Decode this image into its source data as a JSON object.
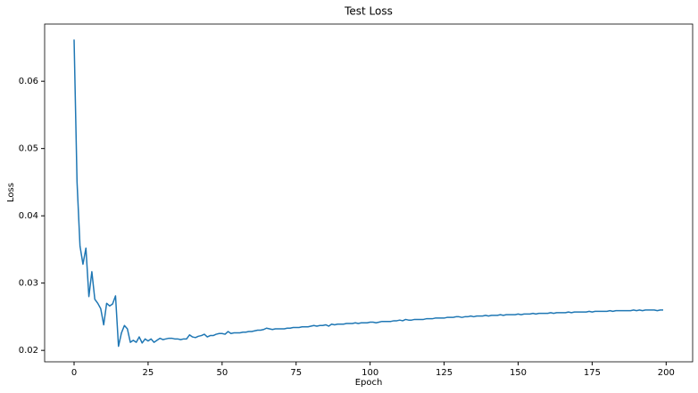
{
  "chart_data": {
    "type": "line",
    "title": "Test Loss",
    "xlabel": "Epoch",
    "ylabel": "Loss",
    "x": [
      0,
      1,
      2,
      3,
      4,
      5,
      6,
      7,
      8,
      9,
      10,
      11,
      12,
      13,
      14,
      15,
      16,
      17,
      18,
      19,
      20,
      21,
      22,
      23,
      24,
      25,
      26,
      27,
      28,
      29,
      30,
      31,
      32,
      33,
      34,
      35,
      36,
      37,
      38,
      39,
      40,
      41,
      42,
      43,
      44,
      45,
      46,
      47,
      48,
      49,
      50,
      51,
      52,
      53,
      54,
      55,
      56,
      57,
      58,
      59,
      60,
      61,
      62,
      63,
      64,
      65,
      66,
      67,
      68,
      69,
      70,
      71,
      72,
      73,
      74,
      75,
      76,
      77,
      78,
      79,
      80,
      81,
      82,
      83,
      84,
      85,
      86,
      87,
      88,
      89,
      90,
      91,
      92,
      93,
      94,
      95,
      96,
      97,
      98,
      99,
      100,
      101,
      102,
      103,
      104,
      105,
      106,
      107,
      108,
      109,
      110,
      111,
      112,
      113,
      114,
      115,
      116,
      117,
      118,
      119,
      120,
      121,
      122,
      123,
      124,
      125,
      126,
      127,
      128,
      129,
      130,
      131,
      132,
      133,
      134,
      135,
      136,
      137,
      138,
      139,
      140,
      141,
      142,
      143,
      144,
      145,
      146,
      147,
      148,
      149,
      150,
      151,
      152,
      153,
      154,
      155,
      156,
      157,
      158,
      159,
      160,
      161,
      162,
      163,
      164,
      165,
      166,
      167,
      168,
      169,
      170,
      171,
      172,
      173,
      174,
      175,
      176,
      177,
      178,
      179,
      180,
      181,
      182,
      183,
      184,
      185,
      186,
      187,
      188,
      189,
      190,
      191,
      192,
      193,
      194,
      195,
      196,
      197,
      198,
      199
    ],
    "series": [
      {
        "name": "Test Loss",
        "color": "#1f77b4",
        "values": [
          0.0662,
          0.045,
          0.0355,
          0.0328,
          0.0352,
          0.028,
          0.0317,
          0.0276,
          0.027,
          0.0262,
          0.0238,
          0.027,
          0.0266,
          0.0269,
          0.0281,
          0.0206,
          0.0226,
          0.0237,
          0.0232,
          0.0212,
          0.0215,
          0.0212,
          0.022,
          0.0211,
          0.0217,
          0.0214,
          0.0217,
          0.0212,
          0.0215,
          0.0218,
          0.0216,
          0.0217,
          0.0218,
          0.0218,
          0.0217,
          0.0217,
          0.0216,
          0.0217,
          0.0217,
          0.0223,
          0.022,
          0.0219,
          0.0221,
          0.0222,
          0.0224,
          0.022,
          0.0222,
          0.0222,
          0.0224,
          0.0225,
          0.0225,
          0.0224,
          0.0228,
          0.0225,
          0.0226,
          0.0226,
          0.0226,
          0.0227,
          0.0227,
          0.0228,
          0.0228,
          0.0229,
          0.023,
          0.023,
          0.0231,
          0.0233,
          0.0232,
          0.0231,
          0.0232,
          0.0232,
          0.0232,
          0.0232,
          0.0233,
          0.0233,
          0.0234,
          0.0234,
          0.0234,
          0.0235,
          0.0235,
          0.0235,
          0.0236,
          0.0237,
          0.0236,
          0.0237,
          0.0237,
          0.0238,
          0.0236,
          0.0239,
          0.0238,
          0.0239,
          0.0239,
          0.0239,
          0.024,
          0.024,
          0.024,
          0.0241,
          0.024,
          0.0241,
          0.0241,
          0.0241,
          0.0242,
          0.0242,
          0.0241,
          0.0242,
          0.0243,
          0.0243,
          0.0243,
          0.0243,
          0.0244,
          0.0244,
          0.0245,
          0.0244,
          0.0246,
          0.0245,
          0.0245,
          0.0246,
          0.0246,
          0.0246,
          0.0246,
          0.0247,
          0.0247,
          0.0247,
          0.0248,
          0.0248,
          0.0248,
          0.0248,
          0.0249,
          0.0249,
          0.0249,
          0.025,
          0.025,
          0.0249,
          0.025,
          0.025,
          0.0251,
          0.025,
          0.0251,
          0.0251,
          0.0251,
          0.0252,
          0.0251,
          0.0252,
          0.0252,
          0.0252,
          0.0253,
          0.0252,
          0.0253,
          0.0253,
          0.0253,
          0.0253,
          0.0254,
          0.0253,
          0.0254,
          0.0254,
          0.0254,
          0.0255,
          0.0254,
          0.0255,
          0.0255,
          0.0255,
          0.0255,
          0.0256,
          0.0255,
          0.0256,
          0.0256,
          0.0256,
          0.0256,
          0.0257,
          0.0256,
          0.0257,
          0.0257,
          0.0257,
          0.0257,
          0.0257,
          0.0258,
          0.0257,
          0.0258,
          0.0258,
          0.0258,
          0.0258,
          0.0258,
          0.0259,
          0.0258,
          0.0259,
          0.0259,
          0.0259,
          0.0259,
          0.0259,
          0.0259,
          0.026,
          0.0259,
          0.026,
          0.0259,
          0.026,
          0.026,
          0.026,
          0.026,
          0.0259,
          0.026,
          0.026
        ]
      }
    ],
    "xlim": [
      -9.95,
      208.95
    ],
    "xticks": [
      0,
      25,
      50,
      75,
      100,
      125,
      150,
      175,
      200
    ],
    "ylim": [
      0.0183,
      0.0685
    ],
    "yticks": [
      0.02,
      0.03,
      0.04,
      0.05,
      0.06
    ],
    "grid": false
  }
}
